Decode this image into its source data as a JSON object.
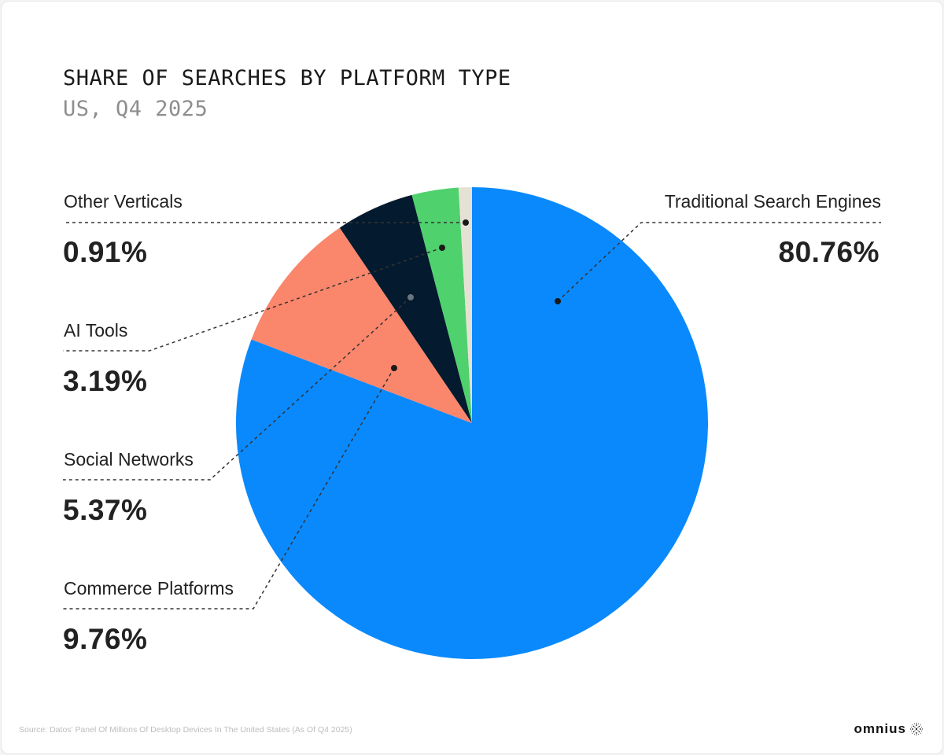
{
  "header": {
    "title": "SHARE OF SEARCHES BY PLATFORM TYPE",
    "subtitle": "US, Q4 2025"
  },
  "labels": [
    {
      "name": "Traditional Search Engines",
      "value": "80.76%"
    },
    {
      "name": "Commerce Platforms",
      "value": "9.76%"
    },
    {
      "name": "Social Networks",
      "value": "5.37%"
    },
    {
      "name": "AI Tools",
      "value": "3.19%"
    },
    {
      "name": "Other Verticals",
      "value": "0.91%"
    }
  ],
  "footer": {
    "source": "Source: Datos' Panel Of Millions Of Desktop Devices In The United States (As Of Q4 2025)",
    "brand": "omnius",
    "brand_icon": "dotted-sphere-icon"
  },
  "colors": {
    "traditional": "#0a89fc",
    "commerce": "#fa866c",
    "social": "#041a2e",
    "ai_tools": "#4fd16d",
    "other": "#e6e1d5",
    "text": "#222222",
    "muted": "#8e8e8e"
  },
  "chart_data": {
    "type": "pie",
    "title": "SHARE OF SEARCHES BY PLATFORM TYPE",
    "subtitle": "US, Q4 2025",
    "categories": [
      "Traditional Search Engines",
      "Commerce Platforms",
      "Social Networks",
      "AI Tools",
      "Other Verticals"
    ],
    "values": [
      80.76,
      9.76,
      5.37,
      3.19,
      0.91
    ],
    "unit": "%",
    "colors": [
      "#0a89fc",
      "#fa866c",
      "#041a2e",
      "#4fd16d",
      "#e6e1d5"
    ],
    "start_angle": "12 o'clock",
    "direction": "clockwise",
    "legend": "callout labels with dashed leader lines",
    "source": "Source: Datos' Panel Of Millions Of Desktop Devices In The United States (As Of Q4 2025)"
  }
}
